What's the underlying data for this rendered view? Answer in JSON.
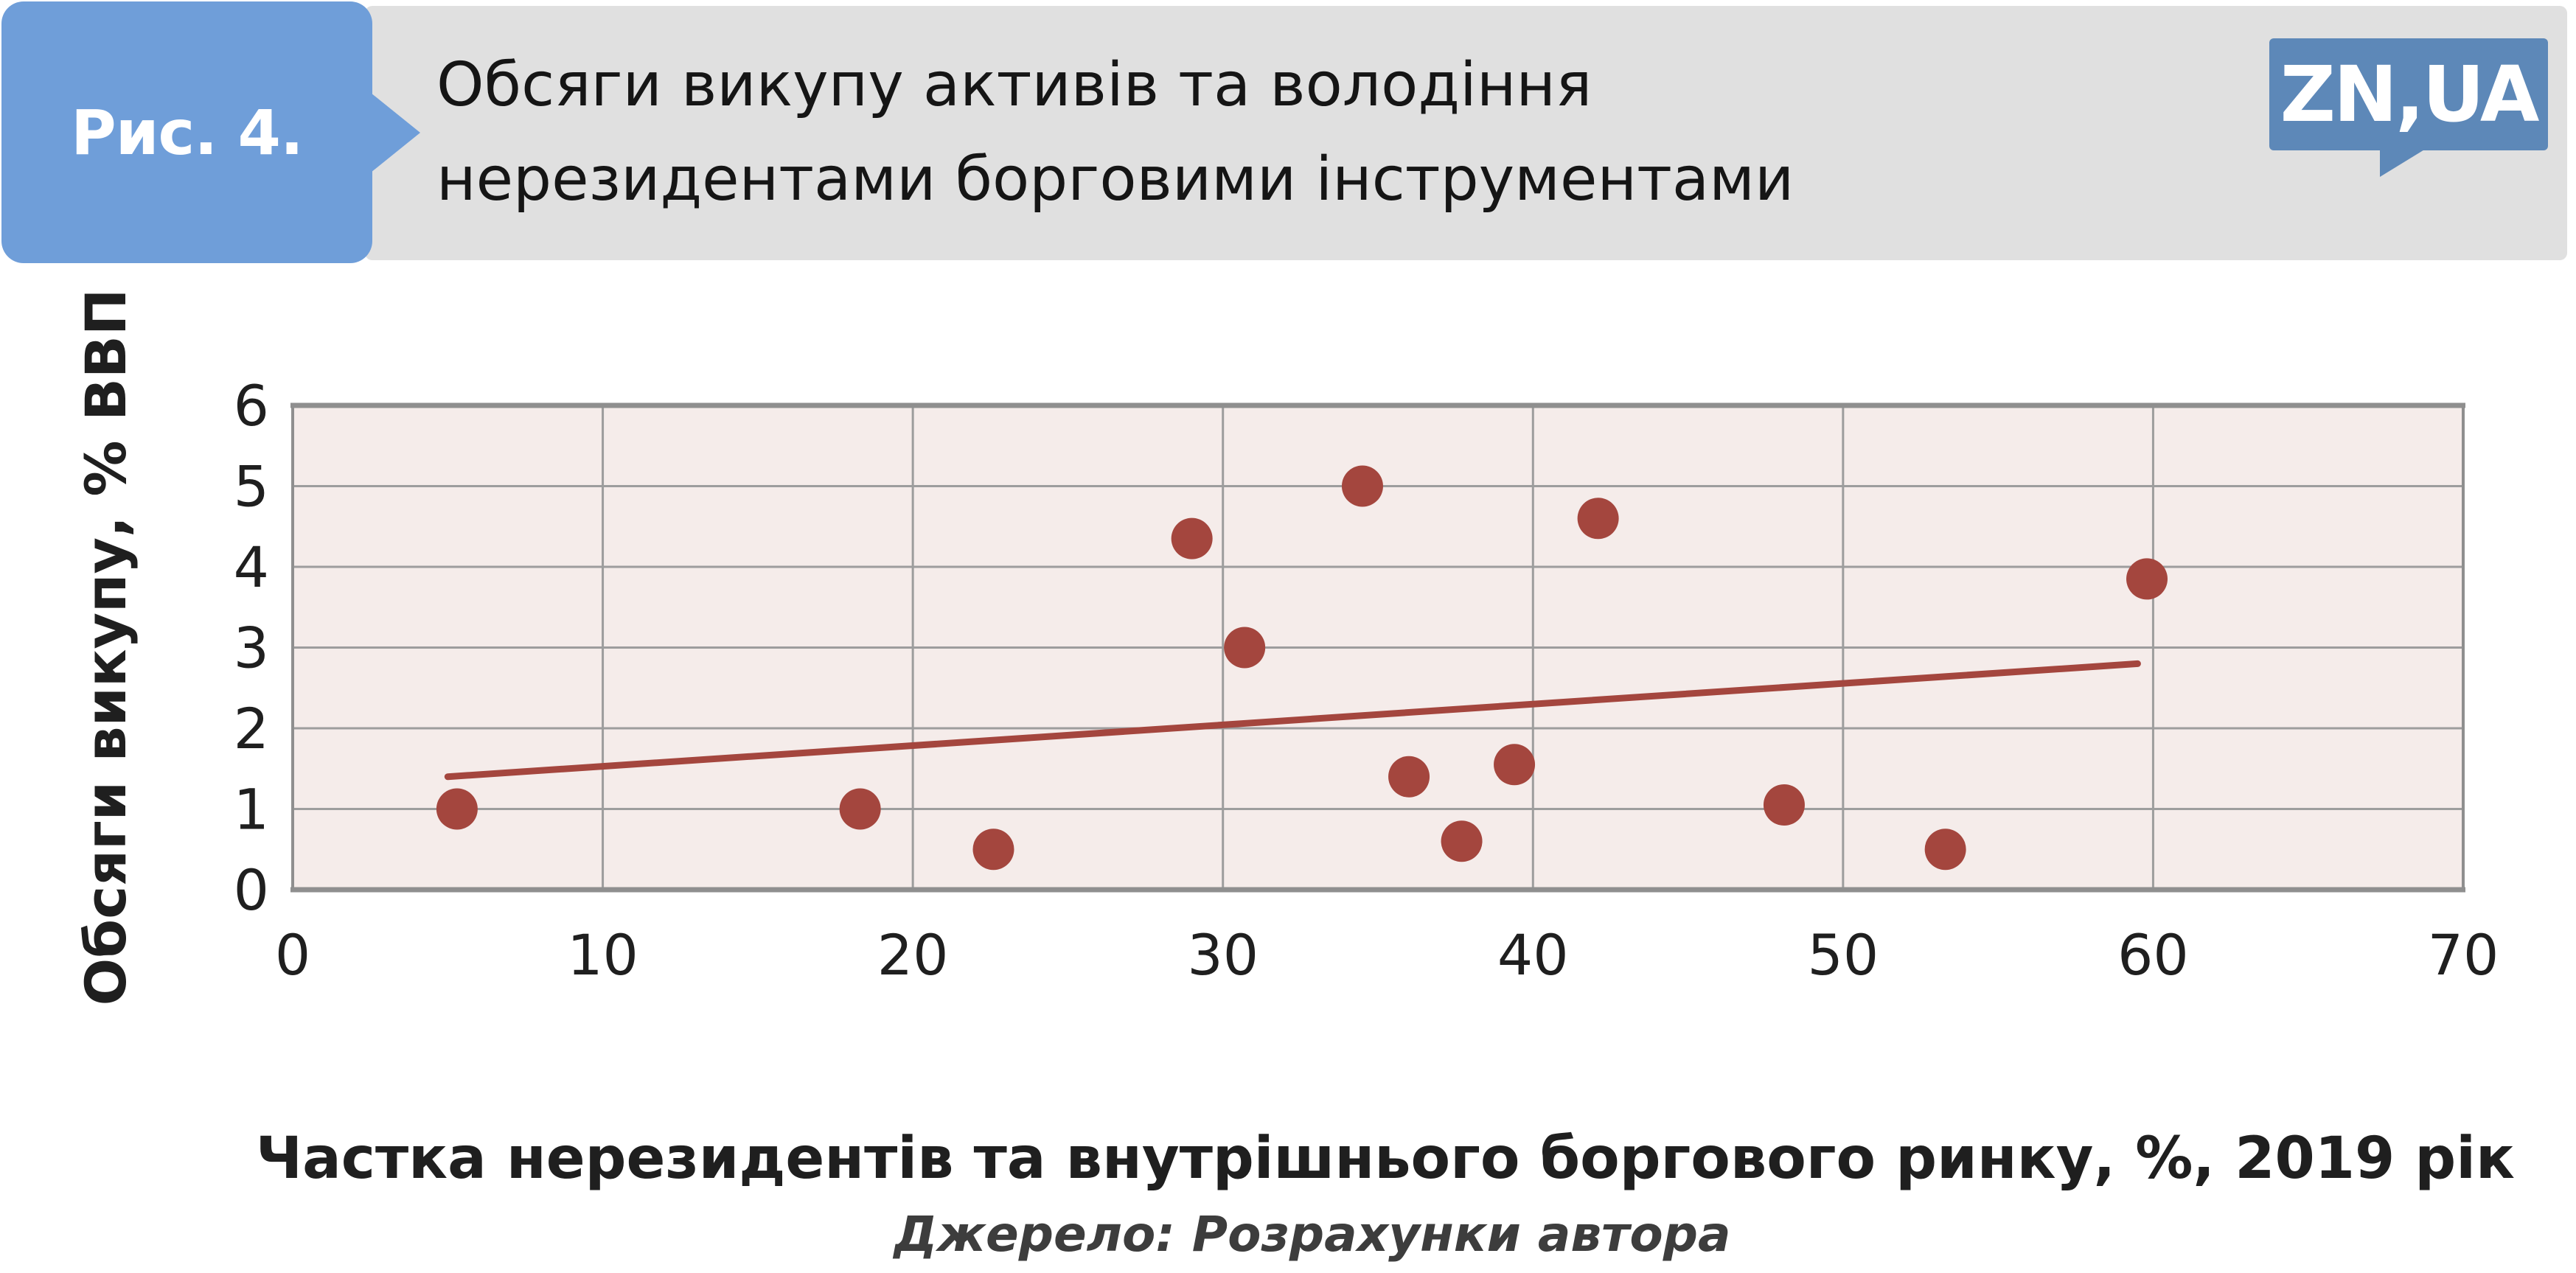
{
  "header": {
    "figure_label": "Рис. 4.",
    "title_line1": "Обсяги викупу активів та володіння",
    "title_line2": "нерезидентами борговими інструментами",
    "bar_color": "#e0e0e0",
    "badge_color": "#6f9ed9",
    "logo": {
      "text": "ZN,UA",
      "bg": "#5d88b8"
    }
  },
  "chart_data": {
    "type": "scatter",
    "xlabel": "Частка нерезидентів та внутрішнього боргового ринку, %, 2019 рік",
    "ylabel": "Обсяги викупу, % ВВП",
    "xlim": [
      0,
      70
    ],
    "ylim": [
      0,
      6
    ],
    "xticks": [
      0,
      10,
      20,
      30,
      40,
      50,
      60,
      70
    ],
    "yticks": [
      0,
      1,
      2,
      3,
      4,
      5,
      6
    ],
    "grid": true,
    "legend": false,
    "marker_color": "#a4463e",
    "trend_color": "#a4463e",
    "plot_bg": "#f5ecea",
    "grid_color": "#9d9d9d",
    "border_color": "#8f8f8f",
    "points": [
      {
        "x": 5.3,
        "y": 1.0
      },
      {
        "x": 18.3,
        "y": 1.0
      },
      {
        "x": 22.6,
        "y": 0.5
      },
      {
        "x": 29.0,
        "y": 4.35
      },
      {
        "x": 30.7,
        "y": 3.0
      },
      {
        "x": 34.5,
        "y": 5.0
      },
      {
        "x": 36.0,
        "y": 1.4
      },
      {
        "x": 37.7,
        "y": 0.6
      },
      {
        "x": 39.4,
        "y": 1.55
      },
      {
        "x": 42.1,
        "y": 4.6
      },
      {
        "x": 48.1,
        "y": 1.05
      },
      {
        "x": 53.3,
        "y": 0.5
      },
      {
        "x": 59.8,
        "y": 3.85
      }
    ],
    "trendline": {
      "x1": 5.0,
      "y1": 1.4,
      "x2": 59.5,
      "y2": 2.8
    }
  },
  "source": {
    "text": "Джерело: Розрахунки автора"
  }
}
